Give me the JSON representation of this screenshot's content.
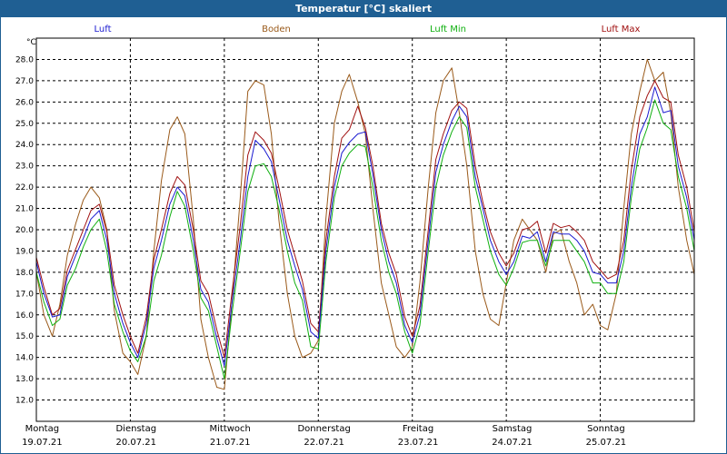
{
  "chart_data": {
    "type": "line",
    "title": "Temperatur [°C] skaliert",
    "ylabel": "°C",
    "ylim": [
      11.0,
      29.0
    ],
    "yticks": [
      "12.0",
      "13.0",
      "14.0",
      "15.0",
      "16.0",
      "17.0",
      "18.0",
      "19.0",
      "20.0",
      "21.0",
      "22.0",
      "23.0",
      "24.0",
      "25.0",
      "26.0",
      "27.0",
      "28.0"
    ],
    "xlim": [
      0,
      7
    ],
    "days": [
      {
        "name": "Montag",
        "date": "19.07.21"
      },
      {
        "name": "Dienstag",
        "date": "20.07.21"
      },
      {
        "name": "Mittwoch",
        "date": "21.07.21"
      },
      {
        "name": "Donnerstag",
        "date": "22.07.21"
      },
      {
        "name": "Freitag",
        "date": "23.07.21"
      },
      {
        "name": "Samstag",
        "date": "24.07.21"
      },
      {
        "name": "Sonntag",
        "date": "25.07.21"
      }
    ],
    "series": [
      {
        "name": "Luft",
        "color": "#1a1ad0",
        "x": [
          0,
          0.08,
          0.17,
          0.25,
          0.33,
          0.42,
          0.5,
          0.58,
          0.67,
          0.75,
          0.83,
          0.92,
          1.0,
          1.08,
          1.17,
          1.25,
          1.33,
          1.42,
          1.5,
          1.58,
          1.67,
          1.75,
          1.83,
          1.92,
          2.0,
          2.08,
          2.17,
          2.25,
          2.33,
          2.42,
          2.5,
          2.58,
          2.67,
          2.75,
          2.83,
          2.92,
          3.0,
          3.08,
          3.17,
          3.25,
          3.33,
          3.42,
          3.5,
          3.58,
          3.67,
          3.75,
          3.83,
          3.92,
          4.0,
          4.08,
          4.17,
          4.25,
          4.33,
          4.42,
          4.5,
          4.58,
          4.67,
          4.75,
          4.83,
          4.92,
          5.0,
          5.08,
          5.17,
          5.25,
          5.33,
          5.42,
          5.5,
          5.58,
          5.67,
          5.75,
          5.83,
          5.92,
          6.0,
          6.08,
          6.17,
          6.25,
          6.33,
          6.42,
          6.5,
          6.58,
          6.67,
          6.75,
          6.83,
          6.92,
          7.0
        ],
        "y": [
          18.5,
          17.0,
          15.9,
          16.0,
          17.8,
          18.8,
          19.6,
          20.5,
          20.9,
          19.5,
          17.0,
          15.6,
          14.7,
          14.0,
          15.6,
          18.2,
          19.5,
          21.2,
          22.0,
          21.6,
          19.5,
          17.2,
          16.6,
          14.9,
          13.6,
          16.5,
          19.5,
          22.5,
          24.2,
          23.8,
          23.2,
          21.5,
          19.5,
          18.3,
          17.2,
          15.2,
          14.9,
          19.0,
          22.0,
          23.6,
          24.1,
          24.5,
          24.6,
          22.6,
          20.0,
          18.5,
          17.5,
          15.5,
          14.7,
          16.0,
          19.5,
          22.7,
          24.0,
          25.1,
          25.8,
          25.3,
          22.5,
          21.0,
          19.5,
          18.5,
          17.9,
          18.5,
          19.7,
          19.6,
          19.9,
          18.5,
          19.9,
          19.8,
          19.8,
          19.5,
          19.0,
          18.0,
          17.9,
          17.5,
          17.5,
          19.0,
          22.0,
          24.5,
          25.3,
          26.7,
          25.5,
          25.6,
          23.0,
          21.5,
          19.5
        ]
      },
      {
        "name": "Boden",
        "color": "#9a5a1a",
        "x": [
          0,
          0.08,
          0.17,
          0.25,
          0.33,
          0.42,
          0.5,
          0.58,
          0.67,
          0.75,
          0.83,
          0.92,
          1.0,
          1.08,
          1.17,
          1.25,
          1.33,
          1.42,
          1.5,
          1.58,
          1.67,
          1.75,
          1.83,
          1.92,
          2.0,
          2.08,
          2.17,
          2.25,
          2.33,
          2.42,
          2.5,
          2.58,
          2.67,
          2.75,
          2.83,
          2.92,
          3.0,
          3.08,
          3.17,
          3.25,
          3.33,
          3.42,
          3.5,
          3.58,
          3.67,
          3.75,
          3.83,
          3.92,
          4.0,
          4.08,
          4.17,
          4.25,
          4.33,
          4.42,
          4.5,
          4.58,
          4.67,
          4.75,
          4.83,
          4.92,
          5.0,
          5.08,
          5.17,
          5.25,
          5.33,
          5.42,
          5.5,
          5.58,
          5.67,
          5.75,
          5.83,
          5.92,
          6.0,
          6.08,
          6.17,
          6.25,
          6.33,
          6.42,
          6.5,
          6.58,
          6.67,
          6.75,
          6.83,
          6.92,
          7.0
        ],
        "y": [
          18.0,
          16.0,
          15.0,
          16.5,
          18.8,
          20.3,
          21.4,
          22.0,
          21.5,
          20.0,
          16.2,
          14.2,
          13.8,
          13.2,
          15.0,
          19.0,
          22.3,
          24.7,
          25.3,
          24.5,
          20.5,
          15.8,
          14.0,
          12.6,
          12.5,
          16.5,
          21.5,
          26.5,
          27.0,
          26.8,
          24.5,
          20.5,
          17.0,
          15.0,
          14.0,
          14.2,
          14.8,
          20.5,
          25.0,
          26.5,
          27.3,
          26.0,
          24.5,
          21.0,
          17.5,
          16.0,
          14.5,
          14.0,
          14.5,
          17.5,
          22.0,
          25.5,
          27.0,
          27.6,
          25.5,
          23.0,
          19.0,
          17.0,
          15.8,
          15.5,
          17.5,
          19.5,
          20.5,
          20.0,
          19.5,
          18.0,
          19.8,
          20.0,
          18.5,
          17.5,
          16.0,
          16.5,
          15.5,
          15.3,
          17.0,
          21.0,
          24.5,
          26.5,
          28.0,
          27.0,
          27.4,
          25.5,
          22.0,
          19.5,
          17.9
        ]
      },
      {
        "name": "Luft Min",
        "color": "#10b010",
        "x": [
          0,
          0.08,
          0.17,
          0.25,
          0.33,
          0.42,
          0.5,
          0.58,
          0.67,
          0.75,
          0.83,
          0.92,
          1.0,
          1.08,
          1.17,
          1.25,
          1.33,
          1.42,
          1.5,
          1.58,
          1.67,
          1.75,
          1.83,
          1.92,
          2.0,
          2.08,
          2.17,
          2.25,
          2.33,
          2.42,
          2.5,
          2.58,
          2.67,
          2.75,
          2.83,
          2.92,
          3.0,
          3.08,
          3.17,
          3.25,
          3.33,
          3.42,
          3.5,
          3.58,
          3.67,
          3.75,
          3.83,
          3.92,
          4.0,
          4.08,
          4.17,
          4.25,
          4.33,
          4.42,
          4.5,
          4.58,
          4.67,
          4.75,
          4.83,
          4.92,
          5.0,
          5.08,
          5.17,
          5.25,
          5.33,
          5.42,
          5.5,
          5.58,
          5.67,
          5.75,
          5.83,
          5.92,
          6.0,
          6.08,
          6.17,
          6.25,
          6.33,
          6.42,
          6.5,
          6.58,
          6.67,
          6.75,
          6.83,
          6.92,
          7.0
        ],
        "y": [
          18.0,
          16.6,
          15.5,
          15.8,
          17.4,
          18.2,
          19.2,
          20.0,
          20.5,
          19.0,
          16.5,
          15.2,
          14.3,
          13.8,
          15.0,
          17.6,
          18.8,
          20.6,
          21.8,
          21.1,
          19.0,
          16.8,
          16.2,
          14.5,
          13.0,
          16.0,
          19.0,
          21.8,
          23.0,
          23.1,
          22.5,
          21.0,
          19.0,
          17.5,
          16.7,
          14.5,
          14.4,
          18.5,
          21.5,
          23.0,
          23.6,
          24.0,
          23.9,
          22.0,
          19.5,
          18.0,
          17.0,
          15.2,
          14.2,
          15.5,
          19.0,
          22.0,
          23.5,
          24.6,
          25.3,
          24.8,
          22.0,
          20.5,
          19.0,
          17.9,
          17.4,
          18.2,
          19.4,
          19.5,
          19.5,
          18.3,
          19.5,
          19.5,
          19.5,
          19.0,
          18.5,
          17.5,
          17.5,
          17.0,
          17.0,
          18.5,
          21.5,
          23.8,
          24.8,
          26.1,
          25.0,
          24.7,
          22.5,
          21.0,
          19.0
        ]
      },
      {
        "name": "Luft Max",
        "color": "#a01010",
        "x": [
          0,
          0.08,
          0.17,
          0.25,
          0.33,
          0.42,
          0.5,
          0.58,
          0.67,
          0.75,
          0.83,
          0.92,
          1.0,
          1.08,
          1.17,
          1.25,
          1.33,
          1.42,
          1.5,
          1.58,
          1.67,
          1.75,
          1.83,
          1.92,
          2.0,
          2.08,
          2.17,
          2.25,
          2.33,
          2.42,
          2.5,
          2.58,
          2.67,
          2.75,
          2.83,
          2.92,
          3.0,
          3.08,
          3.17,
          3.25,
          3.33,
          3.42,
          3.5,
          3.58,
          3.67,
          3.75,
          3.83,
          3.92,
          4.0,
          4.08,
          4.17,
          4.25,
          4.33,
          4.42,
          4.5,
          4.58,
          4.67,
          4.75,
          4.83,
          4.92,
          5.0,
          5.08,
          5.17,
          5.25,
          5.33,
          5.42,
          5.5,
          5.58,
          5.67,
          5.75,
          5.83,
          5.92,
          6.0,
          6.08,
          6.17,
          6.25,
          6.33,
          6.42,
          6.5,
          6.58,
          6.67,
          6.75,
          6.83,
          6.92,
          7.0
        ],
        "y": [
          18.7,
          17.3,
          16.0,
          16.3,
          18.1,
          19.1,
          20.0,
          20.9,
          21.2,
          19.9,
          17.4,
          16.0,
          15.0,
          14.2,
          15.9,
          18.6,
          20.0,
          21.7,
          22.5,
          22.1,
          20.0,
          17.6,
          17.0,
          15.3,
          14.0,
          17.0,
          20.2,
          23.5,
          24.6,
          24.2,
          23.6,
          22.0,
          20.0,
          18.8,
          17.6,
          15.6,
          15.2,
          19.5,
          22.5,
          24.3,
          24.7,
          25.8,
          24.8,
          23.0,
          20.3,
          18.9,
          17.9,
          15.9,
          15.0,
          16.4,
          20.0,
          23.3,
          24.5,
          25.6,
          26.0,
          25.7,
          23.0,
          21.3,
          19.9,
          18.9,
          18.3,
          18.9,
          20.0,
          20.1,
          20.4,
          18.9,
          20.3,
          20.1,
          20.2,
          19.9,
          19.5,
          18.5,
          18.1,
          17.7,
          17.9,
          19.5,
          22.8,
          25.3,
          26.3,
          27.0,
          26.2,
          26.0,
          23.5,
          22.0,
          19.9
        ]
      }
    ]
  }
}
